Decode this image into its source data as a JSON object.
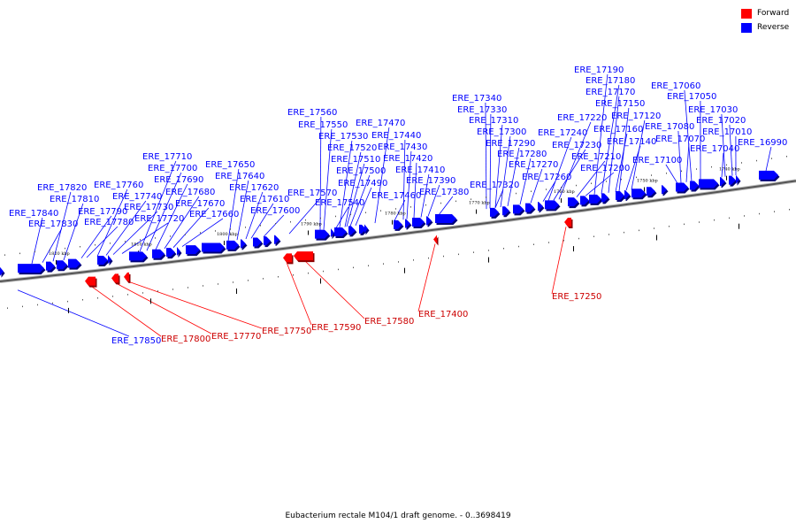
{
  "legend": {
    "forward_label": "Forward",
    "reverse_label": "Reverse",
    "forward_color": "#ff0000",
    "reverse_color": "#0000ff"
  },
  "footer": "Eubacterium rectale M104/1 draft genome. - 0..3698419",
  "axis_ticks": [
    "1820 kbp",
    "1810 kbp",
    "1800 kbp",
    "1790 kbp",
    "1780 kbp",
    "1770 kbp",
    "1760 kbp",
    "1750 kbp",
    "1740 kbp"
  ],
  "reverse_genes": [
    "ERE_17840",
    "ERE_17830",
    "ERE_17820",
    "ERE_17810",
    "ERE_17790",
    "ERE_17780",
    "ERE_17760",
    "ERE_17740",
    "ERE_17730",
    "ERE_17720",
    "ERE_17710",
    "ERE_17700",
    "ERE_17690",
    "ERE_17680",
    "ERE_17670",
    "ERE_17660",
    "ERE_17650",
    "ERE_17640",
    "ERE_17620",
    "ERE_17610",
    "ERE_17600",
    "ERE_17570",
    "ERE_17560",
    "ERE_17550",
    "ERE_17540",
    "ERE_17530",
    "ERE_17520",
    "ERE_17510",
    "ERE_17500",
    "ERE_17490",
    "ERE_17470",
    "ERE_17460",
    "ERE_17440",
    "ERE_17430",
    "ERE_17420",
    "ERE_17410",
    "ERE_17390",
    "ERE_17380",
    "ERE_17340",
    "ERE_17330",
    "ERE_17320",
    "ERE_17310",
    "ERE_17300",
    "ERE_17290",
    "ERE_17280",
    "ERE_17270",
    "ERE_17260",
    "ERE_17240",
    "ERE_17230",
    "ERE_17220",
    "ERE_17210",
    "ERE_17200",
    "ERE_17190",
    "ERE_17180",
    "ERE_17170",
    "ERE_17160",
    "ERE_17150",
    "ERE_17140",
    "ERE_17120",
    "ERE_17100",
    "ERE_17080",
    "ERE_17070",
    "ERE_17060",
    "ERE_17050",
    "ERE_17040",
    "ERE_17030",
    "ERE_17020",
    "ERE_17010",
    "ERE_16990",
    "ERE_17850"
  ],
  "forward_genes": [
    "ERE_17800",
    "ERE_17770",
    "ERE_17750",
    "ERE_17590",
    "ERE_17580",
    "ERE_17400",
    "ERE_17250"
  ]
}
